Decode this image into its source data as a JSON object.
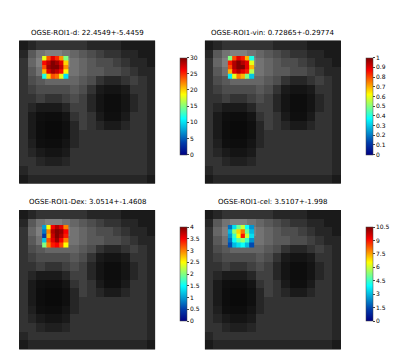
{
  "chart_data": {
    "type": "heatmap",
    "tick_labels": false,
    "background": {
      "range": [
        0,
        1
      ],
      "cells": [
        [
          0.1,
          0.15,
          0.2,
          0.2,
          0.2,
          0.2,
          0.2,
          0.2,
          0.15,
          0.15,
          0.15,
          0.15,
          0.1,
          0.1,
          0.1,
          0.1
        ],
        [
          0.15,
          0.35,
          0.45,
          0.5,
          0.5,
          0.45,
          0.4,
          0.35,
          0.3,
          0.25,
          0.2,
          0.2,
          0.15,
          0.15,
          0.1,
          0.1
        ],
        [
          0.2,
          0.4,
          0.5,
          0.55,
          0.5,
          0.5,
          0.45,
          0.4,
          0.35,
          0.3,
          0.3,
          0.25,
          0.2,
          0.15,
          0.15,
          0.1
        ],
        [
          0.2,
          0.35,
          0.45,
          0.5,
          0.5,
          0.45,
          0.45,
          0.4,
          0.35,
          0.35,
          0.3,
          0.3,
          0.25,
          0.2,
          0.15,
          0.15
        ],
        [
          0.2,
          0.3,
          0.35,
          0.4,
          0.4,
          0.4,
          0.4,
          0.35,
          0.3,
          0.2,
          0.15,
          0.15,
          0.2,
          0.25,
          0.2,
          0.15
        ],
        [
          0.2,
          0.25,
          0.3,
          0.3,
          0.3,
          0.3,
          0.35,
          0.3,
          0.2,
          0.1,
          0.08,
          0.08,
          0.1,
          0.2,
          0.2,
          0.15
        ],
        [
          0.2,
          0.2,
          0.25,
          0.2,
          0.2,
          0.25,
          0.3,
          0.25,
          0.15,
          0.08,
          0.05,
          0.05,
          0.08,
          0.15,
          0.2,
          0.15
        ],
        [
          0.2,
          0.15,
          0.1,
          0.1,
          0.1,
          0.15,
          0.25,
          0.25,
          0.15,
          0.08,
          0.05,
          0.05,
          0.08,
          0.15,
          0.2,
          0.15
        ],
        [
          0.2,
          0.1,
          0.06,
          0.05,
          0.05,
          0.08,
          0.2,
          0.25,
          0.2,
          0.1,
          0.06,
          0.06,
          0.1,
          0.2,
          0.2,
          0.15
        ],
        [
          0.2,
          0.1,
          0.05,
          0.04,
          0.04,
          0.06,
          0.15,
          0.25,
          0.2,
          0.15,
          0.1,
          0.1,
          0.15,
          0.2,
          0.2,
          0.15
        ],
        [
          0.2,
          0.1,
          0.05,
          0.04,
          0.04,
          0.06,
          0.15,
          0.2,
          0.2,
          0.2,
          0.2,
          0.2,
          0.2,
          0.2,
          0.2,
          0.15
        ],
        [
          0.2,
          0.12,
          0.06,
          0.05,
          0.05,
          0.08,
          0.15,
          0.2,
          0.2,
          0.2,
          0.2,
          0.2,
          0.2,
          0.2,
          0.2,
          0.15
        ],
        [
          0.2,
          0.15,
          0.1,
          0.08,
          0.08,
          0.1,
          0.2,
          0.2,
          0.2,
          0.2,
          0.2,
          0.2,
          0.2,
          0.2,
          0.2,
          0.15
        ],
        [
          0.2,
          0.2,
          0.15,
          0.12,
          0.12,
          0.15,
          0.2,
          0.2,
          0.2,
          0.2,
          0.2,
          0.2,
          0.2,
          0.2,
          0.2,
          0.15
        ],
        [
          0.15,
          0.2,
          0.2,
          0.2,
          0.2,
          0.2,
          0.2,
          0.2,
          0.2,
          0.2,
          0.2,
          0.2,
          0.2,
          0.2,
          0.2,
          0.15
        ],
        [
          0.1,
          0.15,
          0.15,
          0.15,
          0.15,
          0.15,
          0.15,
          0.15,
          0.15,
          0.15,
          0.15,
          0.15,
          0.15,
          0.15,
          0.15,
          0.1
        ]
      ]
    },
    "roi": {
      "x": [
        2.5,
        3,
        3.5,
        4,
        4.5,
        5,
        2.5,
        3,
        3.5,
        4,
        4.5,
        5,
        2.5,
        3,
        3.5,
        4,
        4.5,
        5,
        2.5,
        3,
        3.5,
        4,
        4.5,
        5,
        2.5,
        3,
        3.5,
        4,
        4.5,
        5
      ],
      "y": [
        1.5,
        1.5,
        1.5,
        1.5,
        1.5,
        1.5,
        2,
        2,
        2,
        2,
        2,
        2,
        2.5,
        2.5,
        2.5,
        2.5,
        2.5,
        2.5,
        3,
        3,
        3,
        3,
        3,
        3,
        3.5,
        3.5,
        3.5,
        3.5,
        3.5,
        3.5
      ]
    },
    "panels": [
      {
        "title": "OGSE-ROI1-d: 22.4549+-5.4459",
        "clim": [
          0,
          30
        ],
        "cticks": [
          0,
          5,
          10,
          15,
          20,
          25,
          30
        ],
        "values": [
          18,
          24,
          27,
          25,
          22,
          15,
          26,
          28,
          30,
          29,
          27,
          20,
          24,
          29,
          30,
          30,
          28,
          22,
          21,
          27,
          29,
          28,
          26,
          19,
          12,
          20,
          24,
          23,
          18,
          10
        ]
      },
      {
        "title": "OGSE-ROI1-vin: 0.72865+-0.29774",
        "clim": [
          0,
          1
        ],
        "cticks": [
          0,
          0.1,
          0.2,
          0.3,
          0.4,
          0.5,
          0.6,
          0.7,
          0.8,
          0.9,
          1
        ],
        "values": [
          0.5,
          0.8,
          0.9,
          0.85,
          0.7,
          0.4,
          0.85,
          0.95,
          1,
          0.95,
          0.9,
          0.6,
          0.8,
          0.95,
          1,
          1,
          0.9,
          0.7,
          0.7,
          0.9,
          0.95,
          0.9,
          0.85,
          0.55,
          0.35,
          0.6,
          0.75,
          0.7,
          0.5,
          0.3
        ]
      },
      {
        "title": "OGSE-ROI1-Dex: 3.0514+-1.4608",
        "clim": [
          0,
          4
        ],
        "cticks": [
          0,
          0.5,
          1,
          1.5,
          2,
          2.5,
          3,
          3.5,
          4
        ],
        "values": [
          1,
          2.5,
          3.5,
          3.8,
          3.6,
          3,
          0.8,
          3,
          3.8,
          4,
          3.9,
          3.5,
          0.5,
          2.8,
          3.7,
          4,
          3.8,
          3.4,
          1.2,
          3.2,
          3.6,
          3.9,
          3.5,
          3,
          2,
          3,
          3.4,
          3.5,
          3.2,
          2.5
        ]
      },
      {
        "title": "OGSE-ROI1-cel: 3.5107+-1.998",
        "clim": [
          0,
          10.5
        ],
        "cticks": [
          0,
          1.5,
          3,
          4.5,
          6,
          7.5,
          9,
          10.5
        ],
        "values": [
          2,
          3.5,
          5,
          6,
          4,
          2.5,
          3,
          5.5,
          7,
          8,
          5,
          3,
          2.5,
          4.5,
          6.5,
          9,
          6,
          3.5,
          2,
          4,
          5,
          5.5,
          4.5,
          2.5,
          1.5,
          3,
          3.5,
          4,
          3,
          1.5
        ]
      }
    ]
  }
}
